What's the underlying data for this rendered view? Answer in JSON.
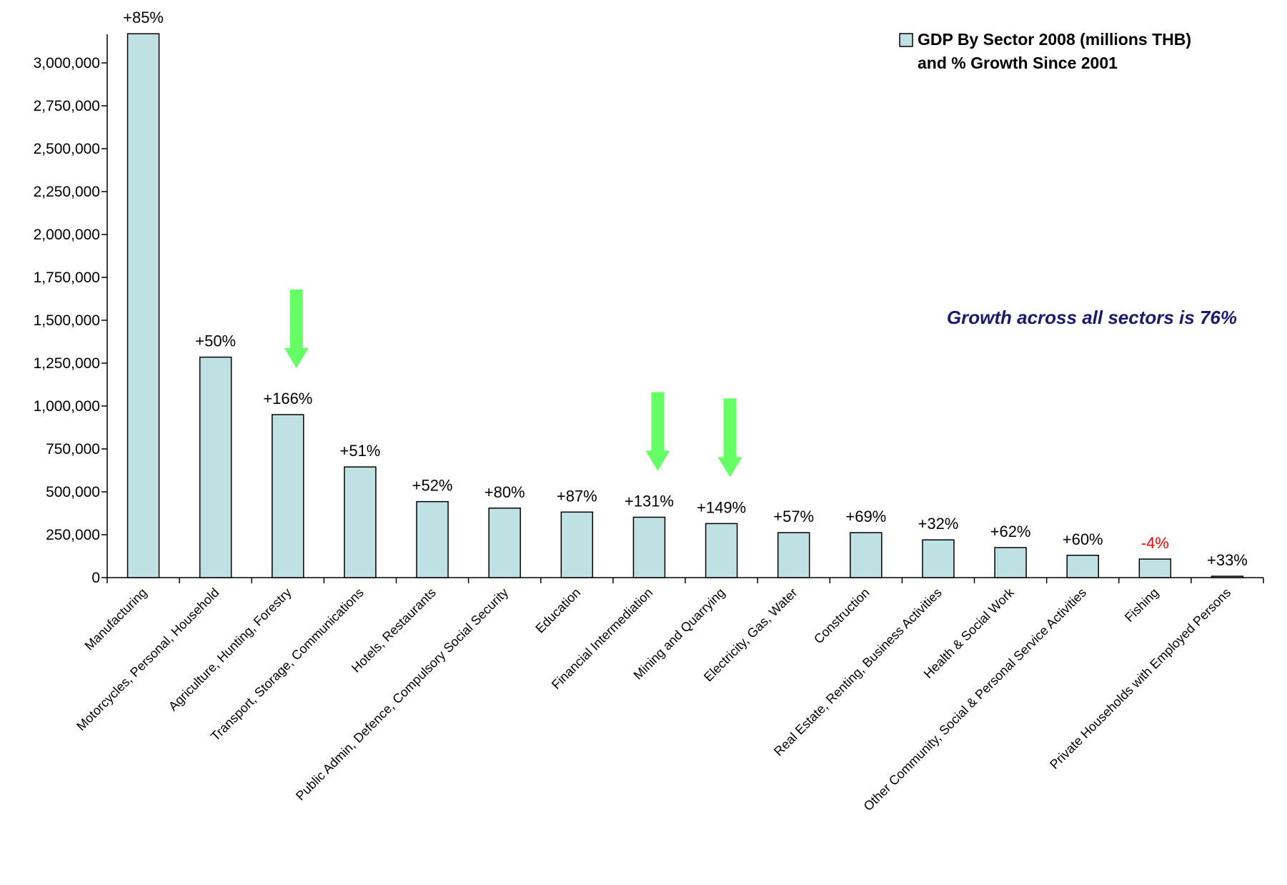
{
  "chart_data": {
    "type": "bar",
    "categories": [
      "Manufacturing",
      "Motorcycles, Personal, Household",
      "Agriculture, Hunting, Forestry",
      "Transport, Storage, Communications",
      "Hotels, Restaurants",
      "Public Admin, Defence, Compulsory Social Security",
      "Education",
      "Financial Intermediation",
      "Mining and Quarrying",
      "Electricity, Gas, Water",
      "Construction",
      "Real Estate, Renting, Business Activities",
      "Health & Social Work",
      "Other Community, Social & Personal Service Activities",
      "Fishing",
      "Private Households with Employed Persons"
    ],
    "values": [
      3170000,
      1285000,
      950000,
      645000,
      443000,
      405000,
      382000,
      352000,
      315000,
      262000,
      262000,
      220000,
      175000,
      130000,
      108000,
      8000
    ],
    "growth_labels": [
      "+85%",
      "+50%",
      "+166%",
      "+51%",
      "+52%",
      "+80%",
      "+87%",
      "+131%",
      "+149%",
      "+57%",
      "+69%",
      "+32%",
      "+62%",
      "+60%",
      "-4%",
      "+33%"
    ],
    "negative_label_color": "#ff0000",
    "highlight_arrows": [
      2,
      7,
      8
    ],
    "ylim": [
      0,
      3250000
    ],
    "yticks": [
      0,
      250000,
      500000,
      750000,
      1000000,
      1250000,
      1500000,
      1750000,
      2000000,
      2250000,
      2500000,
      2750000,
      3000000
    ],
    "ytick_labels": [
      "0",
      "250,000",
      "500,000",
      "750,000",
      "1,000,000",
      "1,250,000",
      "1,500,000",
      "1,750,000",
      "2,000,000",
      "2,250,000",
      "2,500,000",
      "2,750,000",
      "3,000,000"
    ],
    "legend": {
      "line1": "GDP By Sector 2008 (millions THB)",
      "line2": "and % Growth Since 2001",
      "position": "top-right"
    },
    "annotation": "Growth across all sectors is 76%",
    "colors": {
      "bar_fill": "#bfe1e3",
      "bar_stroke": "#000000",
      "arrow": "#66ff66",
      "annotation": "#1a1a6e"
    },
    "grid": false
  }
}
